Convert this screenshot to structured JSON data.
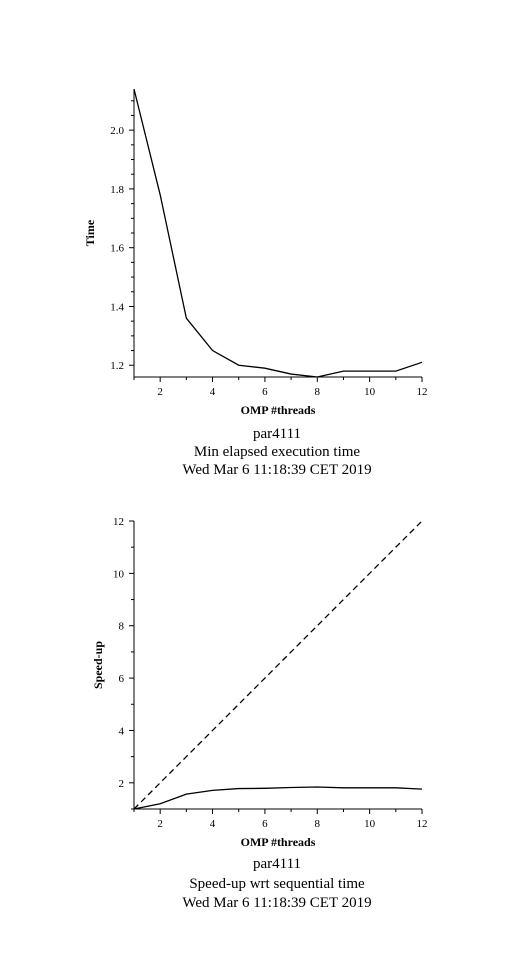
{
  "chart_data": [
    {
      "type": "line",
      "xlabel": "OMP #threads",
      "ylabel": "Time",
      "xlim": [
        1,
        12
      ],
      "ylim": [
        1.16,
        2.14
      ],
      "x_ticks": [
        2,
        4,
        6,
        8,
        10,
        12
      ],
      "y_ticks": [
        1.2,
        1.4,
        1.6,
        1.8,
        2.0
      ],
      "y_tick_labels": [
        "1.2",
        "1.4",
        "1.6",
        "1.8",
        "2.0"
      ],
      "grid": false,
      "series": [
        {
          "style": "solid",
          "x": [
            1,
            2,
            3,
            4,
            5,
            6,
            7,
            8,
            9,
            10,
            11,
            12
          ],
          "values": [
            2.14,
            1.78,
            1.36,
            1.25,
            1.2,
            1.19,
            1.17,
            1.16,
            1.18,
            1.18,
            1.18,
            1.21
          ]
        }
      ],
      "caption": [
        "par4111",
        "Min elapsed execution time",
        "Wed Mar  6 11:18:39 CET 2019"
      ]
    },
    {
      "type": "line",
      "xlabel": "OMP #threads",
      "ylabel": "Speed-up",
      "xlim": [
        1,
        12
      ],
      "ylim": [
        1,
        12
      ],
      "x_ticks": [
        2,
        4,
        6,
        8,
        10,
        12
      ],
      "y_ticks": [
        2,
        4,
        6,
        8,
        10,
        12
      ],
      "y_tick_labels": [
        "2",
        "4",
        "6",
        "8",
        "10",
        "12"
      ],
      "grid": false,
      "series": [
        {
          "style": "solid",
          "x": [
            1,
            2,
            3,
            4,
            5,
            6,
            7,
            8,
            9,
            10,
            11,
            12
          ],
          "values": [
            1.0,
            1.2,
            1.57,
            1.71,
            1.78,
            1.79,
            1.82,
            1.84,
            1.81,
            1.81,
            1.81,
            1.76
          ]
        },
        {
          "style": "dashed",
          "x": [
            1,
            12
          ],
          "values": [
            1,
            12
          ]
        }
      ],
      "caption": [
        "par4111",
        "Speed-up wrt sequential time",
        "Wed Mar  6 11:18:39 CET 2019"
      ]
    }
  ]
}
